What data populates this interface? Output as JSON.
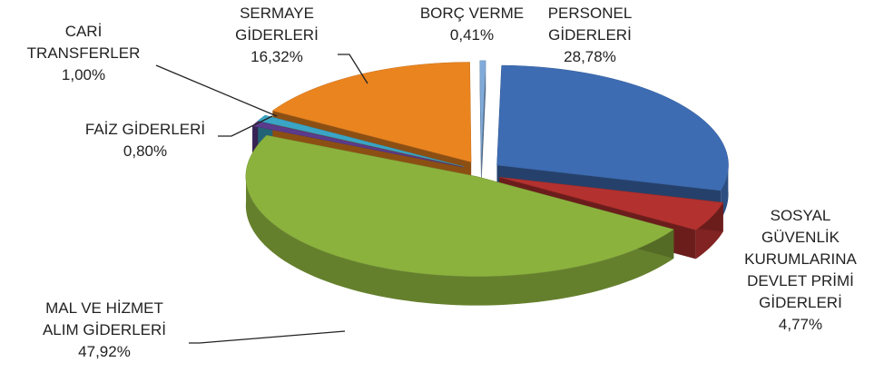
{
  "chart_data": {
    "type": "pie",
    "categories": [
      "PERSONEL GİDERLERİ",
      "SOSYAL GÜVENLİK KURUMLARINA DEVLET PRİMİ GİDERLERİ",
      "MAL VE HİZMET ALIM GİDERLERİ",
      "FAİZ GİDERLERİ",
      "CARİ TRANSFERLER",
      "SERMAYE GİDERLERİ",
      "BORÇ VERME"
    ],
    "values": [
      28.78,
      4.77,
      47.92,
      0.8,
      1.0,
      16.32,
      0.41
    ],
    "value_labels": [
      "28,78%",
      "4,77%",
      "47,92%",
      "0,80%",
      "1,00%",
      "16,32%",
      "0,41%"
    ],
    "colors": [
      "#3d6cb3",
      "#b3312f",
      "#8cb23e",
      "#5b3b8c",
      "#3aa5c5",
      "#ea841f",
      "#80aad9"
    ]
  }
}
